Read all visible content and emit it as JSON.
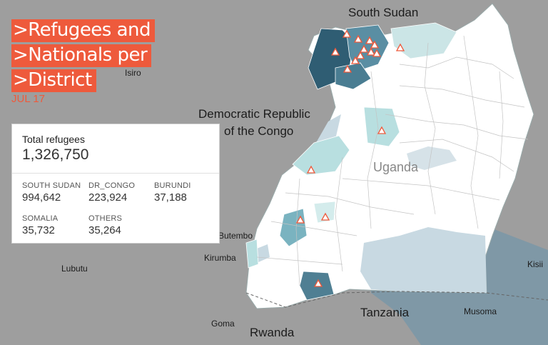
{
  "title_lines": [
    ">Refugees and",
    ">Nationals per",
    ">District"
  ],
  "date": "JUL 17",
  "stats": {
    "total_label": "Total refugees",
    "total_value": "1,326,750",
    "items": [
      {
        "label": "SOUTH SUDAN",
        "value": "994,642"
      },
      {
        "label": "DR_CONGO",
        "value": "223,924"
      },
      {
        "label": "BURUNDI",
        "value": "37,188"
      },
      {
        "label": "SOMALIA",
        "value": "35,732"
      },
      {
        "label": "OTHERS",
        "value": "35,264"
      }
    ]
  },
  "map_labels": {
    "south_sudan": "South Sudan",
    "drc_line1": "Democratic Republic",
    "drc_line2": "of the Congo",
    "uganda": "Uganda",
    "tanzania": "Tanzania",
    "rwanda": "Rwanda",
    "kisii": "Kisii",
    "musoma": "Musoma",
    "goma": "Goma",
    "kirumba": "Kirumba",
    "lubutu": "Lubutu",
    "isiro": "Isiro",
    "butembo": "Butembo"
  },
  "colors": {
    "accent": "#ee5a3c",
    "background": "#9e9e9e",
    "uganda_fill": "#ffffff",
    "lake": "#b9ccd6",
    "dark_district": "#2f5d73",
    "mid_district": "#5a8ea3",
    "light_district": "#b8dfe0"
  },
  "legend_marker": "refugee-settlement-triangle-icon"
}
